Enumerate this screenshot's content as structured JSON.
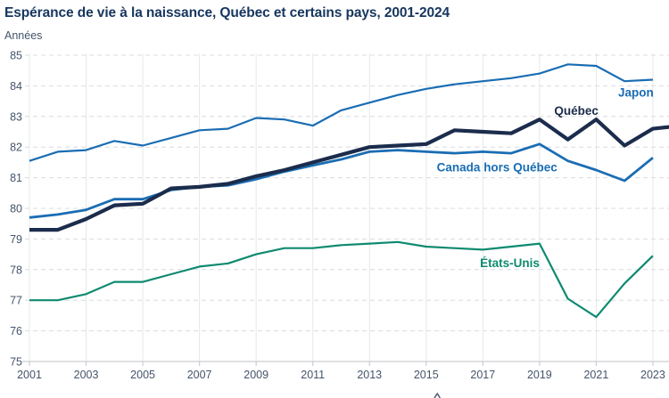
{
  "page": {
    "title": "Espérance de vie à la naissance, Québec et certains pays, 2001-2024",
    "unit_label": "Années"
  },
  "colors": {
    "title": "#16365f",
    "axis_text": "#44546a",
    "grid_horizontal": "#d9dcdf",
    "grid_vertical": "#e5e8ea",
    "axis_line": "#c9cdd2",
    "japon": "#1a6db3",
    "quebec": "#1b2c4c",
    "canada_hors_quebec": "#1a6db3",
    "etats_unis": "#0e8a70"
  },
  "chart_data": {
    "type": "line",
    "title": "Espérance de vie à la naissance, Québec et certains pays, 2001-2024",
    "xlabel": "",
    "ylabel": "Années",
    "xlim": [
      2001,
      2024
    ],
    "ylim": [
      75,
      85
    ],
    "x_ticks": [
      2001,
      2003,
      2005,
      2007,
      2009,
      2011,
      2013,
      2015,
      2017,
      2019,
      2021,
      2023
    ],
    "y_ticks": [
      75,
      76,
      77,
      78,
      79,
      80,
      81,
      82,
      83,
      84,
      85
    ],
    "grid": "horizontal dashed, vertical solid light",
    "legend_position": "inline labels on lines",
    "series": [
      {
        "name": "États-Unis",
        "slug": "etats-unis",
        "color_key": "etats_unis",
        "line_width": 2.2,
        "x_start": 2001,
        "values": [
          77.0,
          77.0,
          77.2,
          77.6,
          77.6,
          77.85,
          78.1,
          78.2,
          78.5,
          78.7,
          78.7,
          78.8,
          78.85,
          78.9,
          78.75,
          78.7,
          78.65,
          78.75,
          78.85,
          77.05,
          76.45,
          77.55,
          78.45
        ],
        "label": {
          "text": "États-Unis",
          "x_year": 2017.95,
          "y_value": 78.22
        }
      },
      {
        "name": "Japon",
        "slug": "japon",
        "color_key": "japon",
        "line_width": 2.2,
        "x_start": 2001,
        "values": [
          81.55,
          81.85,
          81.9,
          82.2,
          82.05,
          82.3,
          82.55,
          82.6,
          82.95,
          82.9,
          82.7,
          83.2,
          83.45,
          83.7,
          83.9,
          84.05,
          84.15,
          84.25,
          84.4,
          84.7,
          84.65,
          84.15,
          84.2
        ],
        "label": {
          "text": "Japon",
          "x_year": 2022.4,
          "y_value": 83.8
        }
      },
      {
        "name": "Canada hors Québec",
        "slug": "canada-hors-quebec",
        "color_key": "canada_hors_quebec",
        "line_width": 2.8,
        "x_start": 2001,
        "values": [
          79.7,
          79.8,
          79.95,
          80.3,
          80.3,
          80.6,
          80.7,
          80.75,
          80.95,
          81.2,
          81.4,
          81.6,
          81.85,
          81.9,
          81.85,
          81.8,
          81.85,
          81.8,
          82.1,
          81.55,
          81.25,
          80.9,
          81.65
        ],
        "label": {
          "text": "Canada hors Québec",
          "x_year": 2017.5,
          "y_value": 81.35
        }
      },
      {
        "name": "Québec",
        "slug": "quebec",
        "color_key": "quebec",
        "line_width": 4.2,
        "x_start": 2001,
        "values": [
          79.3,
          79.3,
          79.65,
          80.1,
          80.15,
          80.65,
          80.7,
          80.8,
          81.05,
          81.25,
          81.5,
          81.75,
          82.0,
          82.05,
          82.1,
          82.55,
          82.5,
          82.45,
          82.9,
          82.25,
          82.9,
          82.05,
          82.6,
          82.7
        ],
        "label": {
          "text": "Québec",
          "x_year": 2020.3,
          "y_value": 83.2
        }
      }
    ]
  }
}
